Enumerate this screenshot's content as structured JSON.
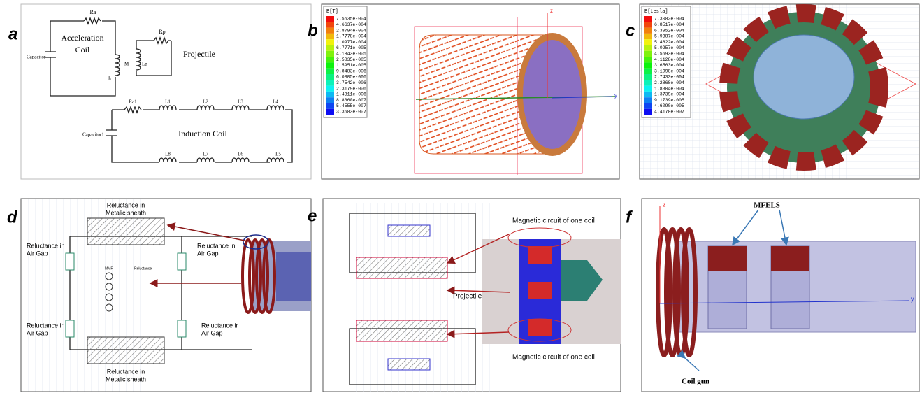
{
  "panel_a": {
    "letter": "a",
    "ra": "Ra",
    "acceleration_coil": [
      "Acceleration",
      "Coil"
    ],
    "capacitor": "Capacitor",
    "m": "M",
    "l": "L",
    "rp": "Rp",
    "lp": "Lp",
    "projectile": "Projectile",
    "ra1": "Ra1",
    "capacitor1": "Capacitor1",
    "induction_coil": "Induction Coil",
    "top_coils": [
      "L1",
      "L2",
      "L3",
      "L4"
    ],
    "bottom_coils": [
      "L8",
      "L7",
      "L6",
      "L5"
    ]
  },
  "panel_b": {
    "letter": "b",
    "legend_title": "B[T]",
    "legend_values": [
      "7.5535e-004",
      "4.6637e-004",
      "2.8794e-004",
      "1.7778e-004",
      "1.0977e-004",
      "6.7771e-005",
      "4.1843e-005",
      "2.5835e-005",
      "1.5951e-005",
      "9.8483e-006",
      "6.0805e-006",
      "3.7542e-006",
      "2.3179e-006",
      "1.4311e-006",
      "8.8360e-007",
      "5.4555e-007",
      "3.3683e-007"
    ],
    "axis_z": "z",
    "axis_y": "y"
  },
  "panel_c": {
    "letter": "c",
    "legend_title": "B[tesla]",
    "legend_values": [
      "7.3082e-004",
      "6.8517e-004",
      "6.3952e-004",
      "5.9387e-004",
      "5.4822e-004",
      "5.0257e-004",
      "4.5693e-004",
      "4.1128e-004",
      "3.6563e-004",
      "3.1998e-004",
      "2.7433e-004",
      "2.2868e-004",
      "1.8304e-004",
      "1.3739e-004",
      "9.1739e-005",
      "4.6090e-005",
      "4.4178e-007"
    ]
  },
  "panel_d": {
    "letter": "d",
    "top_sheath": [
      "Reluctance in",
      "Metalic sheath"
    ],
    "left_top_gap": [
      "Reluctance in",
      "Air Gap"
    ],
    "right_top_gap": [
      "Reluctance in",
      "Air Gap"
    ],
    "left_bottom_gap": [
      "Reluctance in",
      "Air Gap"
    ],
    "right_bottom_gap": [
      "Reluctance ir",
      "Air Gap"
    ],
    "bottom_sheath": [
      "Reluctance in",
      "Metalic sheath"
    ],
    "mmf": "MMF",
    "reluctance": "Reluctance"
  },
  "panel_e": {
    "letter": "e",
    "top_label": "Magnetic circuit of one coil",
    "projectile": "Projectile",
    "bottom_label": "Magnetic circuit of one coil"
  },
  "panel_f": {
    "letter": "f",
    "axis_z": "z",
    "axis_y": "y",
    "mfels": "MFELS",
    "coil_gun": "Coil gun"
  }
}
